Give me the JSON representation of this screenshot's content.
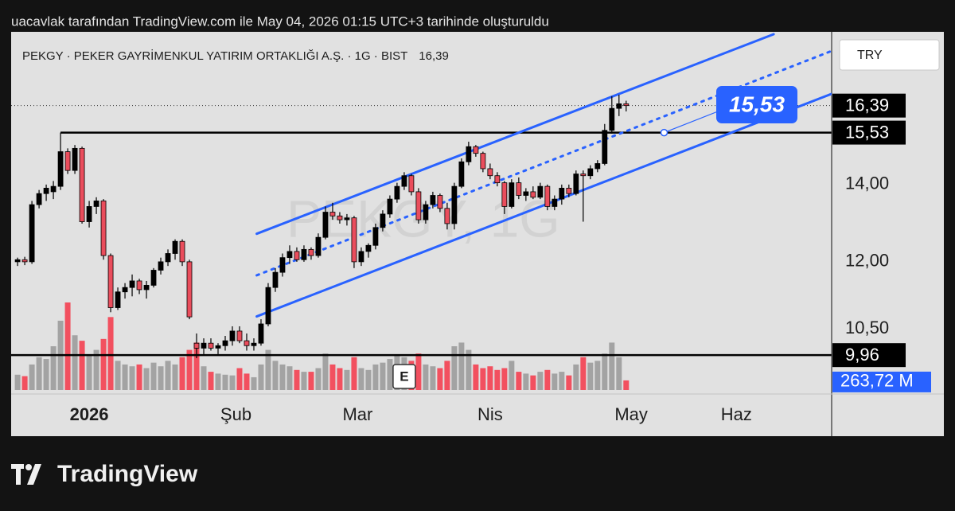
{
  "header": "uacavlak tarafından TradingView.com ile May 04, 2026 01:15 UTC+3 tarihinde oluşturuldu",
  "footer": "TradingView",
  "chart_data": {
    "type": "candlestick",
    "title": "PEKGY · PEKER GAYRİMENKUL YATIRIM ORTAKLIĞI A.Ş. · 1G · BIST",
    "watermark": "PEKGY, 1G",
    "currency": "TRY",
    "log_scale": true,
    "up_color": "#000000",
    "down_color": "#ea4d5c",
    "volume_up_color": "#a3a3a3",
    "volume_down_color": "#f2505f",
    "line_color": "#2962ff",
    "last_price": {
      "value": 16.39,
      "label": "16,39"
    },
    "ylim": [
      9.29,
      18.99
    ],
    "yticks": [
      {
        "value": 14,
        "label": "14,00"
      },
      {
        "value": 12,
        "label": "12,00"
      },
      {
        "value": 10.5,
        "label": "10,50"
      }
    ],
    "xlim": [
      -0.9,
      113.7
    ],
    "xticks": [
      {
        "value": 10,
        "label": "2026"
      },
      {
        "value": 30.5,
        "label": "Şub"
      },
      {
        "value": 47.5,
        "label": "Mar"
      },
      {
        "value": 66,
        "label": "Nis"
      },
      {
        "value": 85.7,
        "label": "May"
      },
      {
        "value": 100.4,
        "label": "Haz"
      }
    ],
    "open": [
      12.0,
      12.05,
      12.0,
      13.45,
      13.75,
      13.8,
      13.95,
      14.95,
      14.4,
      15.05,
      13.0,
      13.4,
      13.55,
      12.15,
      10.95,
      11.3,
      11.4,
      11.55,
      11.35,
      11.45,
      11.8,
      12.0,
      12.2,
      12.5,
      12.0,
      10.2,
      10.1,
      10.2,
      10.1,
      10.15,
      10.25,
      10.45,
      10.25,
      10.15,
      10.2,
      10.6,
      11.4,
      11.75,
      12.1,
      12.25,
      12.05,
      12.3,
      12.15,
      12.6,
      13.25,
      13.15,
      13.05,
      13.1,
      12.0,
      12.25,
      12.4,
      12.85,
      13.2,
      13.6,
      13.95,
      14.25,
      13.8,
      13.05,
      13.45,
      13.7,
      13.35,
      12.95,
      13.95,
      14.65,
      15.1,
      14.9,
      14.45,
      14.25,
      14.05,
      13.4,
      14.05,
      13.7,
      13.8,
      13.65,
      13.95,
      13.4,
      13.6,
      13.9,
      13.75,
      14.3,
      14.25,
      14.45,
      14.6,
      15.6,
      16.3,
      16.45
    ],
    "high": [
      12.1,
      12.12,
      13.55,
      13.85,
      14.0,
      14.1,
      15.53,
      15.05,
      15.15,
      15.1,
      13.55,
      13.65,
      13.6,
      12.2,
      11.4,
      11.5,
      11.7,
      11.6,
      11.55,
      11.85,
      12.1,
      12.3,
      12.55,
      12.55,
      12.05,
      10.4,
      10.3,
      10.3,
      10.2,
      10.35,
      10.55,
      10.55,
      10.4,
      10.3,
      10.7,
      11.5,
      11.85,
      12.2,
      12.4,
      12.35,
      12.4,
      12.35,
      12.7,
      13.4,
      13.5,
      13.25,
      13.2,
      13.15,
      12.35,
      12.45,
      12.95,
      13.3,
      13.7,
      14.05,
      14.35,
      14.3,
      13.9,
      13.55,
      13.8,
      13.75,
      13.5,
      14.05,
      14.75,
      15.25,
      15.15,
      14.95,
      14.6,
      14.35,
      14.1,
      14.15,
      14.2,
      13.9,
      13.95,
      14.05,
      14.0,
      13.7,
      14.0,
      14.0,
      14.4,
      14.4,
      14.55,
      14.7,
      15.8,
      16.7,
      16.75,
      16.55
    ],
    "low": [
      11.9,
      11.92,
      11.95,
      13.35,
      13.55,
      13.6,
      13.85,
      14.3,
      14.3,
      12.95,
      12.85,
      13.2,
      12.05,
      10.85,
      10.9,
      11.15,
      11.2,
      11.25,
      11.15,
      11.4,
      11.7,
      11.9,
      12.05,
      11.9,
      10.7,
      9.9,
      9.98,
      10.05,
      9.98,
      10.05,
      10.15,
      10.2,
      10.05,
      10.05,
      10.15,
      10.55,
      11.3,
      11.65,
      11.95,
      12.0,
      12.0,
      12.05,
      12.1,
      12.55,
      13.05,
      12.95,
      12.9,
      11.85,
      11.9,
      12.1,
      12.3,
      12.75,
      13.1,
      13.5,
      13.85,
      13.7,
      12.95,
      12.95,
      13.35,
      13.25,
      12.8,
      12.8,
      13.9,
      14.55,
      14.8,
      14.35,
      14.15,
      13.95,
      13.2,
      13.35,
      13.6,
      13.55,
      13.6,
      13.6,
      13.3,
      13.3,
      13.45,
      13.65,
      13.7,
      13.0,
      14.15,
      14.35,
      14.55,
      15.5,
      16.05,
      16.2
    ],
    "close": [
      12.05,
      12.0,
      13.45,
      13.75,
      13.9,
      13.95,
      14.95,
      14.4,
      15.05,
      13.0,
      13.4,
      13.55,
      12.15,
      10.95,
      11.3,
      11.4,
      11.55,
      11.35,
      11.45,
      11.8,
      12.0,
      12.2,
      12.5,
      12.0,
      10.75,
      10.1,
      10.2,
      10.1,
      10.15,
      10.25,
      10.45,
      10.25,
      10.15,
      10.2,
      10.6,
      11.4,
      11.75,
      12.1,
      12.25,
      12.05,
      12.3,
      12.15,
      12.6,
      13.25,
      13.15,
      13.05,
      13.1,
      12.0,
      12.25,
      12.4,
      12.85,
      13.2,
      13.6,
      13.95,
      14.25,
      13.8,
      13.05,
      13.45,
      13.7,
      13.35,
      12.95,
      13.95,
      14.65,
      15.1,
      14.9,
      14.45,
      14.25,
      14.05,
      13.4,
      14.05,
      13.7,
      13.8,
      13.65,
      13.95,
      13.4,
      13.6,
      13.9,
      13.75,
      14.3,
      14.25,
      14.45,
      14.6,
      15.6,
      16.3,
      16.45,
      16.39
    ],
    "volume": [
      420,
      380,
      700,
      900,
      850,
      1200,
      1900,
      2400,
      1500,
      1350,
      950,
      1100,
      1400,
      2000,
      800,
      700,
      650,
      700,
      600,
      750,
      650,
      800,
      700,
      900,
      1100,
      1300,
      650,
      500,
      450,
      420,
      400,
      600,
      450,
      350,
      700,
      1100,
      800,
      700,
      650,
      550,
      500,
      500,
      600,
      1000,
      700,
      600,
      550,
      900,
      600,
      550,
      700,
      750,
      850,
      950,
      900,
      800,
      1000,
      700,
      650,
      600,
      800,
      1200,
      1300,
      1100,
      700,
      600,
      650,
      550,
      600,
      800,
      500,
      450,
      400,
      500,
      550,
      450,
      500,
      400,
      700,
      900,
      750,
      800,
      1000,
      1300,
      900,
      263.72
    ],
    "volume_value_label": "263,72 M",
    "hlines": [
      {
        "value": 15.53,
        "label": "15,53",
        "start": 6
      },
      {
        "value": 9.96,
        "label": "9,96"
      }
    ],
    "trendlines": [
      {
        "style": "solid",
        "points": [
          [
            33.4,
            12.69
          ],
          [
            105.6,
            18.9
          ]
        ]
      },
      {
        "style": "dotted",
        "points": [
          [
            33.4,
            11.68
          ],
          [
            113.7,
            18.28
          ]
        ]
      },
      {
        "style": "solid",
        "points": [
          [
            33.4,
            10.76
          ],
          [
            113.7,
            16.78
          ]
        ]
      }
    ],
    "annotation": {
      "x": 90.3,
      "value": 15.53,
      "label": "15,53"
    },
    "earnings": {
      "x": 54,
      "label": "E"
    }
  }
}
